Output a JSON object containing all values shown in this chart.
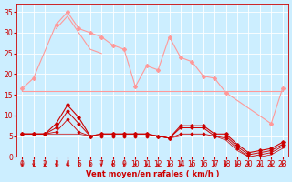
{
  "bg_color": "#cceeff",
  "grid_color": "#aaddcc",
  "xlabel": "Vent moyen/en rafales ( km/h )",
  "xlim": [
    -0.5,
    23.5
  ],
  "ylim": [
    0,
    37
  ],
  "yticks": [
    0,
    5,
    10,
    15,
    20,
    25,
    30,
    35
  ],
  "xticks": [
    0,
    1,
    2,
    3,
    4,
    5,
    6,
    7,
    8,
    9,
    10,
    11,
    12,
    13,
    14,
    15,
    16,
    17,
    18,
    19,
    20,
    21,
    22,
    23
  ],
  "series": [
    {
      "x": [
        0,
        1,
        3,
        4,
        5,
        6,
        7,
        8,
        9,
        10,
        11,
        12,
        13,
        14,
        15,
        16,
        17,
        18,
        22,
        23
      ],
      "y": [
        16.5,
        19,
        32,
        35,
        31,
        30,
        29,
        27,
        26,
        17,
        22,
        21,
        29,
        24,
        23,
        19.5,
        19,
        15.5,
        8,
        16.5
      ],
      "color": "#ff9999",
      "lw": 0.8,
      "marker": "D",
      "ms": 2.0
    },
    {
      "x": [
        3,
        4,
        6,
        7
      ],
      "y": [
        31,
        34,
        26,
        25
      ],
      "color": "#ff9999",
      "lw": 0.8,
      "marker": null,
      "ms": 0
    },
    {
      "x": [
        0,
        1,
        2,
        3,
        4,
        5,
        6,
        7,
        8,
        9,
        10,
        11,
        12,
        13,
        14,
        15,
        16,
        17,
        18,
        23
      ],
      "y": [
        16,
        16,
        16,
        16,
        16,
        16,
        16,
        16,
        16,
        16,
        16,
        16,
        16,
        16,
        16,
        16,
        16,
        16,
        16,
        16
      ],
      "color": "#ff9999",
      "lw": 0.8,
      "marker": null,
      "ms": 0
    },
    {
      "x": [
        0,
        1,
        2,
        3,
        4,
        5,
        6,
        7,
        8,
        9,
        10,
        11,
        12,
        13,
        14,
        15,
        16,
        17,
        18,
        19,
        20,
        21,
        22,
        23
      ],
      "y": [
        5.5,
        5.5,
        5.5,
        8,
        12.5,
        9.5,
        5,
        5.5,
        5.5,
        5.5,
        5.5,
        5.5,
        5,
        4.5,
        7.5,
        7.5,
        7.5,
        5.5,
        5.5,
        3,
        1,
        1.5,
        2,
        3.5
      ],
      "color": "#cc0000",
      "lw": 0.8,
      "marker": "D",
      "ms": 1.8
    },
    {
      "x": [
        0,
        1,
        2,
        3,
        4,
        5,
        6,
        7,
        8,
        9,
        10,
        11,
        12,
        13,
        14,
        15,
        16,
        17,
        18,
        19,
        20,
        21,
        22,
        23
      ],
      "y": [
        5.5,
        5.5,
        5.5,
        7,
        11,
        8,
        5,
        5.5,
        5.5,
        5.5,
        5.5,
        5.5,
        5,
        4.5,
        7,
        7,
        7,
        5,
        5,
        2.5,
        0.5,
        1,
        1.5,
        3
      ],
      "color": "#cc0000",
      "lw": 0.7,
      "marker": "D",
      "ms": 1.6
    },
    {
      "x": [
        0,
        1,
        2,
        3,
        4,
        5,
        6,
        7,
        8,
        9,
        10,
        11,
        12,
        13,
        14,
        15,
        16,
        17,
        18,
        19,
        20,
        21,
        22,
        23
      ],
      "y": [
        5.5,
        5.5,
        5.5,
        6,
        9,
        6,
        5,
        5,
        5,
        5,
        5,
        5,
        5,
        4.5,
        5.5,
        5.5,
        5.5,
        5,
        4.5,
        2,
        0,
        0.5,
        1,
        2.5
      ],
      "color": "#cc0000",
      "lw": 0.6,
      "marker": "D",
      "ms": 1.4
    },
    {
      "x": [
        0,
        1,
        2,
        3,
        4,
        5,
        6,
        7,
        8,
        9,
        10,
        11,
        12,
        13,
        14,
        15,
        16,
        17,
        18,
        19,
        20,
        21,
        22,
        23
      ],
      "y": [
        5.5,
        5.5,
        5.5,
        5.5,
        5.5,
        5.5,
        5,
        5,
        5,
        5,
        5,
        5,
        5,
        4.5,
        5,
        5,
        5,
        5,
        4,
        1.5,
        0,
        0,
        0.5,
        2
      ],
      "color": "#cc0000",
      "lw": 0.5,
      "marker": null,
      "ms": 0
    }
  ],
  "arrow_color": "#cc0000",
  "tick_color": "#cc0000",
  "label_color": "#cc0000",
  "label_fontsize": 5.5,
  "xlabel_fontsize": 6.0
}
